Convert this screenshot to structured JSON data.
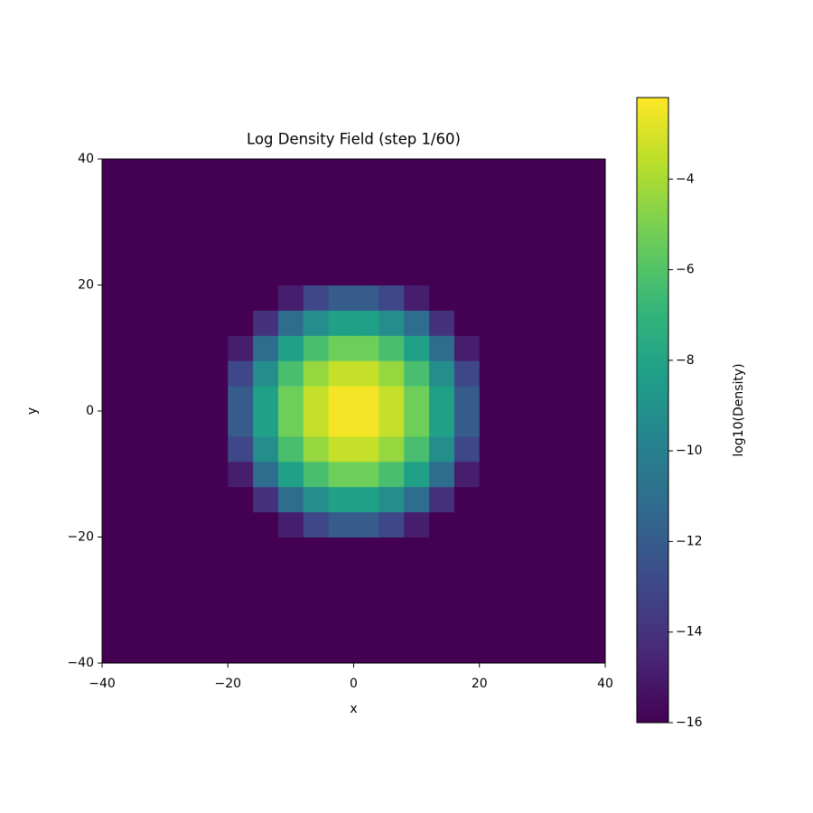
{
  "chart_data": {
    "type": "heatmap",
    "title": "Log Density Field (step 1/60)",
    "x_label": "x",
    "y_label": "y",
    "colorbar_label": "log10(Density)",
    "colormap": "viridis",
    "x": [
      -38,
      -34,
      -30,
      -26,
      -22,
      -18,
      -14,
      -10,
      -6,
      -2,
      2,
      6,
      10,
      14,
      18,
      22,
      26,
      30,
      34,
      38
    ],
    "y": [
      -38,
      -34,
      -30,
      -26,
      -22,
      -18,
      -14,
      -10,
      -6,
      -2,
      2,
      6,
      10,
      14,
      18,
      22,
      26,
      30,
      34,
      38
    ],
    "z": [
      [
        -16,
        -16,
        -16,
        -16,
        -16,
        -16,
        -16,
        -16,
        -16,
        -16,
        -16,
        -16,
        -16,
        -16,
        -16,
        -16,
        -16,
        -16,
        -16,
        -16
      ],
      [
        -16,
        -16,
        -16,
        -16,
        -16,
        -16,
        -16,
        -16,
        -16,
        -16,
        -16,
        -16,
        -16,
        -16,
        -16,
        -16,
        -16,
        -16,
        -16,
        -16
      ],
      [
        -16,
        -16,
        -16,
        -16,
        -16,
        -16,
        -16,
        -16,
        -16,
        -16,
        -16,
        -16,
        -16,
        -16,
        -16,
        -16,
        -16,
        -16,
        -16,
        -16
      ],
      [
        -16,
        -16,
        -16,
        -16,
        -16,
        -16,
        -16,
        -16,
        -16,
        -16,
        -16,
        -16,
        -16,
        -16,
        -16,
        -16,
        -16,
        -16,
        -16,
        -16
      ],
      [
        -16,
        -16,
        -16,
        -16,
        -16,
        -16,
        -16,
        -16,
        -16,
        -16,
        -16,
        -16,
        -16,
        -16,
        -16,
        -16,
        -16,
        -16,
        -16,
        -16
      ],
      [
        -16,
        -16,
        -16,
        -16,
        -16,
        -16,
        -16,
        -14.9,
        -13.0,
        -12.0,
        -12.0,
        -13.0,
        -14.9,
        -16,
        -16,
        -16,
        -16,
        -16,
        -16,
        -16
      ],
      [
        -16,
        -16,
        -16,
        -16,
        -16,
        -16,
        -14.0,
        -11.1,
        -9.2,
        -8.2,
        -8.2,
        -9.2,
        -11.1,
        -14.0,
        -16,
        -16,
        -16,
        -16,
        -16,
        -16
      ],
      [
        -16,
        -16,
        -16,
        -16,
        -16,
        -14.9,
        -11.1,
        -8.2,
        -6.3,
        -5.3,
        -5.3,
        -6.3,
        -8.2,
        -11.1,
        -14.9,
        -16,
        -16,
        -16,
        -16,
        -16
      ],
      [
        -16,
        -16,
        -16,
        -16,
        -16,
        -13.0,
        -9.2,
        -6.3,
        -4.4,
        -3.4,
        -3.4,
        -4.4,
        -6.3,
        -9.2,
        -13.0,
        -16,
        -16,
        -16,
        -16,
        -16
      ],
      [
        -16,
        -16,
        -16,
        -16,
        -16,
        -12.0,
        -8.2,
        -5.3,
        -3.4,
        -2.4,
        -2.4,
        -3.4,
        -5.3,
        -8.2,
        -12.0,
        -16,
        -16,
        -16,
        -16,
        -16
      ],
      [
        -16,
        -16,
        -16,
        -16,
        -16,
        -12.0,
        -8.2,
        -5.3,
        -3.4,
        -2.4,
        -2.4,
        -3.4,
        -5.3,
        -8.2,
        -12.0,
        -16,
        -16,
        -16,
        -16,
        -16
      ],
      [
        -16,
        -16,
        -16,
        -16,
        -16,
        -13.0,
        -9.2,
        -6.3,
        -4.4,
        -3.4,
        -3.4,
        -4.4,
        -6.3,
        -9.2,
        -13.0,
        -16,
        -16,
        -16,
        -16,
        -16
      ],
      [
        -16,
        -16,
        -16,
        -16,
        -16,
        -14.9,
        -11.1,
        -8.2,
        -6.3,
        -5.3,
        -5.3,
        -6.3,
        -8.2,
        -11.1,
        -14.9,
        -16,
        -16,
        -16,
        -16,
        -16
      ],
      [
        -16,
        -16,
        -16,
        -16,
        -16,
        -16,
        -14.0,
        -11.1,
        -9.2,
        -8.2,
        -8.2,
        -9.2,
        -11.1,
        -14.0,
        -16,
        -16,
        -16,
        -16,
        -16,
        -16
      ],
      [
        -16,
        -16,
        -16,
        -16,
        -16,
        -16,
        -16,
        -14.9,
        -13.0,
        -12.0,
        -12.0,
        -13.0,
        -14.9,
        -16,
        -16,
        -16,
        -16,
        -16,
        -16,
        -16
      ],
      [
        -16,
        -16,
        -16,
        -16,
        -16,
        -16,
        -16,
        -16,
        -16,
        -16,
        -16,
        -16,
        -16,
        -16,
        -16,
        -16,
        -16,
        -16,
        -16,
        -16
      ],
      [
        -16,
        -16,
        -16,
        -16,
        -16,
        -16,
        -16,
        -16,
        -16,
        -16,
        -16,
        -16,
        -16,
        -16,
        -16,
        -16,
        -16,
        -16,
        -16,
        -16
      ],
      [
        -16,
        -16,
        -16,
        -16,
        -16,
        -16,
        -16,
        -16,
        -16,
        -16,
        -16,
        -16,
        -16,
        -16,
        -16,
        -16,
        -16,
        -16,
        -16,
        -16
      ],
      [
        -16,
        -16,
        -16,
        -16,
        -16,
        -16,
        -16,
        -16,
        -16,
        -16,
        -16,
        -16,
        -16,
        -16,
        -16,
        -16,
        -16,
        -16,
        -16,
        -16
      ],
      [
        -16,
        -16,
        -16,
        -16,
        -16,
        -16,
        -16,
        -16,
        -16,
        -16,
        -16,
        -16,
        -16,
        -16,
        -16,
        -16,
        -16,
        -16,
        -16,
        -16
      ]
    ],
    "xlim": [
      -40,
      40
    ],
    "ylim": [
      -40,
      40
    ],
    "clim": [
      -16,
      -2.2
    ],
    "xticks": [
      {
        "value": -40,
        "label": "−40"
      },
      {
        "value": -20,
        "label": "−20"
      },
      0,
      20,
      40
    ],
    "yticks": [
      {
        "value": -40,
        "label": "−40"
      },
      {
        "value": -20,
        "label": "−20"
      },
      0,
      20,
      40
    ],
    "cticks": [
      {
        "value": -4,
        "label": "−4"
      },
      {
        "value": -6,
        "label": "−6"
      },
      {
        "value": -8,
        "label": "−8"
      },
      {
        "value": -10,
        "label": "−10"
      },
      {
        "value": -12,
        "label": "−12"
      },
      {
        "value": -14,
        "label": "−14"
      },
      {
        "value": -16,
        "label": "−16"
      }
    ]
  }
}
